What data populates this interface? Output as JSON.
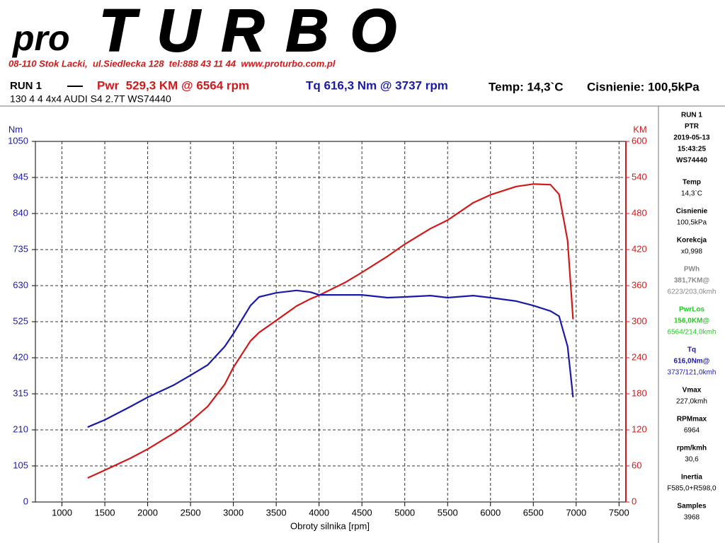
{
  "header": {
    "logo_pro": "pro",
    "logo_turbo": "TURBO",
    "address": "08-110 Stok Lacki,  ul.Siedlecka 128  tel:888 43 11 44  www.proturbo.com.pl",
    "run": "RUN 1",
    "temp": "Temp: 14,3`C",
    "pressure": "Cisnienie: 100,5kPa",
    "vehicle": "130 4 4 4x4 AUDI S4 2.7T WS74440"
  },
  "sidebar": {
    "lines": [
      "RUN 1",
      "PTR",
      "2019-05-13",
      "15:43:25",
      "WS74440"
    ],
    "items": [
      {
        "label": "Temp",
        "lines": [
          "14,3`C"
        ]
      },
      {
        "label": "Cisnienie",
        "lines": [
          "100,5kPa"
        ]
      },
      {
        "label": "Korekcja",
        "lines": [
          "x0,998"
        ]
      },
      {
        "label": "PWh",
        "lines": [
          "381,7KM@",
          "6223/203,0kmh"
        ],
        "color": "#8a8a8a"
      },
      {
        "label": "PwrLos",
        "lines": [
          "156,0KM@",
          "6564/214,0kmh"
        ],
        "color": "#22cc22"
      },
      {
        "label": "Tq",
        "lines": [
          "616,0Nm@",
          "3737/121,0kmh"
        ],
        "color": "#1a1aa8"
      },
      {
        "label": "Vmax",
        "lines": [
          "227,0kmh"
        ]
      },
      {
        "label": "RPMmax",
        "lines": [
          "6964"
        ]
      },
      {
        "label": "rpm/kmh",
        "lines": [
          "30,6"
        ]
      },
      {
        "label": "Inertia",
        "lines": [
          "F585,0+R598,0"
        ]
      },
      {
        "label": "Samples",
        "lines": [
          "3968"
        ]
      }
    ]
  },
  "chart_data": {
    "type": "line",
    "x_label": "Obroty silnika [rpm]",
    "y_label": "Nm",
    "y2_label": "KM",
    "grid": true,
    "x": [
      1300,
      1500,
      1800,
      2000,
      2300,
      2500,
      2700,
      2900,
      3000,
      3200,
      3300,
      3500,
      3737,
      3900,
      4000,
      4300,
      4500,
      4800,
      5000,
      5300,
      5500,
      5800,
      6000,
      6300,
      6500,
      6700,
      6800,
      6900,
      6964
    ],
    "series": [
      {
        "name": "Pwr  529,3 KM @ 6564 rpm",
        "color": "#d01a1a",
        "axis": "y2",
        "values": [
          40,
          53,
          73,
          88,
          114,
          134,
          159,
          196,
          224,
          268,
          282,
          302,
          326,
          338,
          344,
          365,
          382,
          409,
          429,
          455,
          469,
          498,
          511,
          525,
          529,
          528,
          512,
          435,
          304
        ]
      },
      {
        "name": "Tq 616,3 Nm @ 3737 rpm",
        "color": "#1a1aa8",
        "values": [
          218,
          239,
          278,
          305,
          340,
          369,
          399,
          453,
          490,
          572,
          597,
          609,
          616,
          611,
          603,
          603,
          603,
          595,
          597,
          601,
          595,
          601,
          595,
          585,
          572,
          556,
          541,
          453,
          305
        ]
      }
    ],
    "xlim": [
      690,
      7580
    ],
    "xticks": [
      1000,
      1500,
      2000,
      2500,
      3000,
      3500,
      4000,
      4500,
      5000,
      5500,
      6000,
      6500,
      7000,
      7500
    ],
    "ylim": [
      0,
      1050
    ],
    "yticks": [
      0,
      105,
      210,
      315,
      420,
      525,
      630,
      735,
      840,
      945,
      1050
    ],
    "y2lim": [
      0,
      600
    ],
    "y2ticks": [
      0,
      60,
      120,
      180,
      240,
      300,
      360,
      420,
      480,
      540,
      600
    ]
  }
}
